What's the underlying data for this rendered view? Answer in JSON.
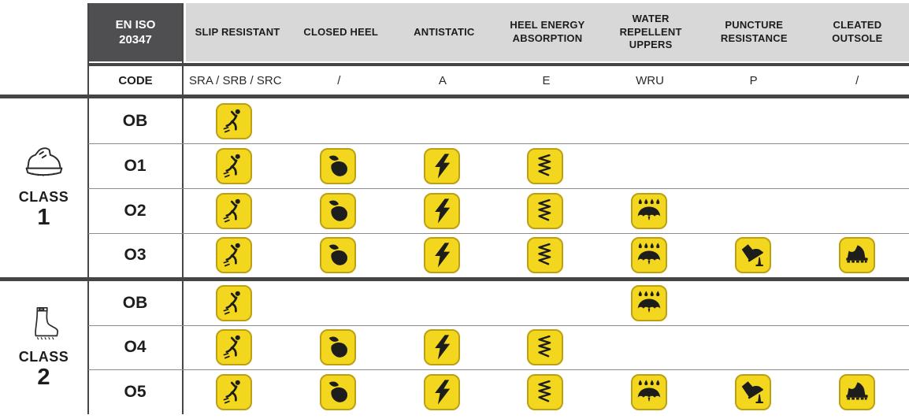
{
  "table": {
    "standard": "EN ISO\n20347",
    "code_row_label": "CODE",
    "columns": [
      {
        "label": "SLIP RESISTANT",
        "code": "SRA / SRB / SRC",
        "icon": "slip-icon"
      },
      {
        "label": "CLOSED HEEL",
        "code": "/",
        "icon": "closed-heel-icon"
      },
      {
        "label": "ANTISTATIC",
        "code": "A",
        "icon": "antistatic-icon"
      },
      {
        "label": "HEEL ENERGY\nABSORPTION",
        "code": "E",
        "icon": "heel-energy-icon"
      },
      {
        "label": "WATER\nREPELLENT\nUPPERS",
        "code": "WRU",
        "icon": "water-repellent-icon"
      },
      {
        "label": "PUNCTURE\nRESISTANCE",
        "code": "P",
        "icon": "puncture-icon"
      },
      {
        "label": "CLEATED\nOUTSOLE",
        "code": "/",
        "icon": "cleated-icon"
      }
    ]
  },
  "classes": [
    {
      "label": "CLASS",
      "number": "1",
      "icon": "work-shoe-icon",
      "rows": [
        {
          "code": "OB",
          "features": [
            1,
            0,
            0,
            0,
            0,
            0,
            0
          ]
        },
        {
          "code": "O1",
          "features": [
            1,
            1,
            1,
            1,
            0,
            0,
            0
          ]
        },
        {
          "code": "O2",
          "features": [
            1,
            1,
            1,
            1,
            1,
            0,
            0
          ]
        },
        {
          "code": "O3",
          "features": [
            1,
            1,
            1,
            1,
            1,
            1,
            1
          ]
        }
      ]
    },
    {
      "label": "CLASS",
      "number": "2",
      "icon": "rubber-boot-icon",
      "rows": [
        {
          "code": "OB",
          "features": [
            1,
            0,
            0,
            0,
            1,
            0,
            0
          ]
        },
        {
          "code": "O4",
          "features": [
            1,
            1,
            1,
            1,
            0,
            0,
            0
          ]
        },
        {
          "code": "O5",
          "features": [
            1,
            1,
            1,
            1,
            1,
            1,
            1
          ]
        }
      ]
    }
  ],
  "colors": {
    "icon_yellow": "#F2D71E",
    "icon_border": "#BC9F14",
    "band_gray": "#D8D8D8",
    "dark_box": "#4F4F51",
    "line_dark": "#454547",
    "line_thin": "#8C8C8C",
    "text_dark": "#1D1D1B",
    "glyph_dark": "#1D1D1B"
  }
}
